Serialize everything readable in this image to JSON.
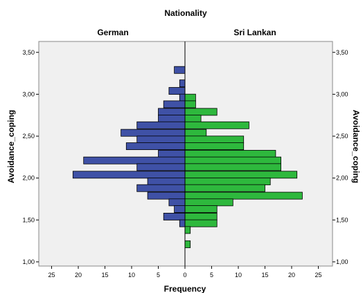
{
  "chart_data": {
    "type": "bar",
    "title": "Nationality",
    "panels": [
      "German",
      "Sri Lankan"
    ],
    "xlabel": "Frequency",
    "ylabel": "Avoidance_coping",
    "ylim": [
      0.95,
      3.63
    ],
    "y_ticks": [
      "1,00",
      "1,50",
      "2,00",
      "2,50",
      "3,00",
      "3,50"
    ],
    "y_tick_values": [
      1.0,
      1.5,
      2.0,
      2.5,
      3.0,
      3.5
    ],
    "x_ticks": [
      "25",
      "20",
      "15",
      "10",
      "5",
      "0",
      "5",
      "10",
      "15",
      "20",
      "25"
    ],
    "bin_width": 0.0833,
    "series": [
      {
        "name": "German",
        "color": "#3f51a6",
        "bins": [
          {
            "y": 3.29,
            "value": 2
          },
          {
            "y": 3.13,
            "value": 1
          },
          {
            "y": 3.04,
            "value": 3
          },
          {
            "y": 2.96,
            "value": 1
          },
          {
            "y": 2.88,
            "value": 4
          },
          {
            "y": 2.79,
            "value": 5
          },
          {
            "y": 2.71,
            "value": 5
          },
          {
            "y": 2.63,
            "value": 9
          },
          {
            "y": 2.54,
            "value": 12
          },
          {
            "y": 2.46,
            "value": 9
          },
          {
            "y": 2.38,
            "value": 11
          },
          {
            "y": 2.29,
            "value": 5
          },
          {
            "y": 2.21,
            "value": 19
          },
          {
            "y": 2.13,
            "value": 9
          },
          {
            "y": 2.04,
            "value": 21
          },
          {
            "y": 1.96,
            "value": 7
          },
          {
            "y": 1.88,
            "value": 9
          },
          {
            "y": 1.79,
            "value": 7
          },
          {
            "y": 1.71,
            "value": 3
          },
          {
            "y": 1.63,
            "value": 2
          },
          {
            "y": 1.54,
            "value": 4
          },
          {
            "y": 1.46,
            "value": 1
          }
        ]
      },
      {
        "name": "Sri Lankan",
        "color": "#2eb83d",
        "bins": [
          {
            "y": 2.96,
            "value": 2
          },
          {
            "y": 2.88,
            "value": 2
          },
          {
            "y": 2.79,
            "value": 6
          },
          {
            "y": 2.71,
            "value": 3
          },
          {
            "y": 2.63,
            "value": 12
          },
          {
            "y": 2.54,
            "value": 4
          },
          {
            "y": 2.46,
            "value": 11
          },
          {
            "y": 2.38,
            "value": 11
          },
          {
            "y": 2.29,
            "value": 17
          },
          {
            "y": 2.21,
            "value": 18
          },
          {
            "y": 2.13,
            "value": 18
          },
          {
            "y": 2.04,
            "value": 21
          },
          {
            "y": 1.96,
            "value": 16
          },
          {
            "y": 1.88,
            "value": 15
          },
          {
            "y": 1.79,
            "value": 22
          },
          {
            "y": 1.71,
            "value": 9
          },
          {
            "y": 1.63,
            "value": 6
          },
          {
            "y": 1.54,
            "value": 6
          },
          {
            "y": 1.46,
            "value": 6
          },
          {
            "y": 1.38,
            "value": 1
          },
          {
            "y": 1.21,
            "value": 1
          }
        ]
      }
    ],
    "x_range": [
      0,
      28
    ],
    "background_color": "#f0f0f0",
    "grid": false,
    "legend": "none"
  }
}
